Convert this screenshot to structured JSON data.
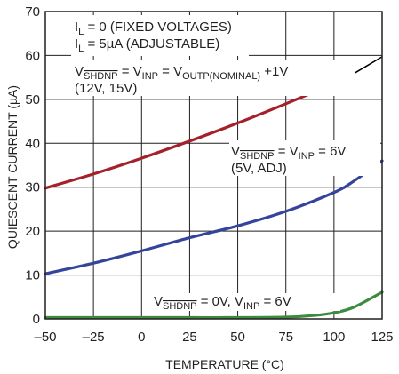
{
  "chart_data": {
    "type": "line",
    "xlabel": "TEMPERATURE (°C)",
    "ylabel": "QUIESCENT CURRENT (µA)",
    "xlim": [
      -50,
      125
    ],
    "ylim": [
      0,
      70
    ],
    "xticks": [
      -50,
      -25,
      0,
      25,
      50,
      75,
      100,
      125
    ],
    "xtick_labels": [
      "–50",
      "–25",
      "0",
      "25",
      "50",
      "75",
      "100",
      "125"
    ],
    "yticks": [
      0,
      10,
      20,
      30,
      40,
      50,
      60,
      70
    ],
    "ytick_labels": [
      "0",
      "10",
      "20",
      "30",
      "40",
      "50",
      "60",
      "70"
    ],
    "grid": true,
    "legend": "none",
    "annotations": {
      "top_left": {
        "line1": {
          "a": "I",
          "a_sub": "L",
          "b": " = 0 (FIXED VOLTAGES)"
        },
        "line2": {
          "a": "I",
          "a_sub": "L",
          "b": " =  5µA (ADJUSTABLE)"
        }
      },
      "red": {
        "p1": "V",
        "p1_sub": "SHDNP",
        "p2": " = V",
        "p2_sub": "INP",
        "p3": " = V",
        "p3_sub": "OUTP(NOMINAL)",
        "p4": " +1V",
        "line2": "(12V, 15V)"
      },
      "blue": {
        "p1": "V",
        "p1_sub": "SHDNP",
        "p2": " = V",
        "p2_sub": "INP",
        "p3": " = 6V",
        "line2": "(5V, ADJ)"
      },
      "green": {
        "p1": "V",
        "p1_sub": "SHDNP",
        "p2": " = 0V, V",
        "p2_sub": "INP",
        "p3": " = 6V"
      }
    },
    "series": [
      {
        "color": "#a4212b",
        "x": [
          -50,
          -25,
          0,
          25,
          50,
          75,
          100,
          110
        ],
        "y": [
          29.8,
          33.0,
          36.6,
          40.5,
          44.6,
          49.0,
          53.6,
          55.8
        ]
      },
      {
        "color": "#000000",
        "x": [
          110,
          125
        ],
        "y": [
          55.8,
          59.7
        ]
      },
      {
        "color": "#34449a",
        "x": [
          -50,
          -25,
          0,
          25,
          50,
          75,
          100,
          110,
          125
        ],
        "y": [
          10.3,
          12.7,
          15.5,
          18.5,
          21.2,
          24.5,
          28.8,
          31.3,
          36.0
        ]
      },
      {
        "color": "#3d8a41",
        "x": [
          -50,
          -25,
          0,
          25,
          50,
          75,
          90,
          100,
          110,
          125
        ],
        "y": [
          0.3,
          0.3,
          0.3,
          0.3,
          0.3,
          0.4,
          0.8,
          1.4,
          2.6,
          6.1
        ]
      }
    ]
  }
}
